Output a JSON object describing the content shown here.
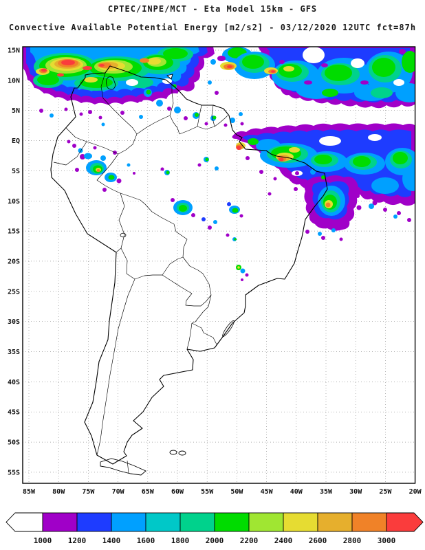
{
  "header": {
    "line1": "CPTEC/INPE/MCT -  Eta Model 15km - GFS",
    "line2": "Convective Available Potential Energy [m2/s2] - 03/12/2020 12UTC fct=87h"
  },
  "map": {
    "lat_labels": [
      "15N",
      "10N",
      "5N",
      "EQ",
      "5S",
      "10S",
      "15S",
      "20S",
      "25S",
      "30S",
      "35S",
      "40S",
      "45S",
      "50S",
      "55S"
    ],
    "lon_labels": [
      "85W",
      "80W",
      "75W",
      "70W",
      "65W",
      "60W",
      "55W",
      "50W",
      "45W",
      "40W",
      "35W",
      "30W",
      "25W",
      "20W"
    ]
  },
  "colorbar": {
    "tick_labels": [
      "1000",
      "1200",
      "1400",
      "1600",
      "1800",
      "2000",
      "2200",
      "2400",
      "2600",
      "2800",
      "3000"
    ],
    "below_min_color": "#ffffff",
    "segment_colors": [
      "#a000c8",
      "#1e3cff",
      "#00a0ff",
      "#00c8c8",
      "#00d28c",
      "#00dc00",
      "#a0e632",
      "#e6dc32",
      "#e6af2d",
      "#f08228"
    ],
    "above_max_color": "#fa3c3c"
  },
  "field": {
    "variable": "Convective Available Potential Energy",
    "units": "m2/s2",
    "model": "Eta Model 15km",
    "driver": "GFS",
    "source": "CPTEC/INPE/MCT",
    "init_time": "03/12/2020 12UTC",
    "forecast": "fct=87h"
  }
}
